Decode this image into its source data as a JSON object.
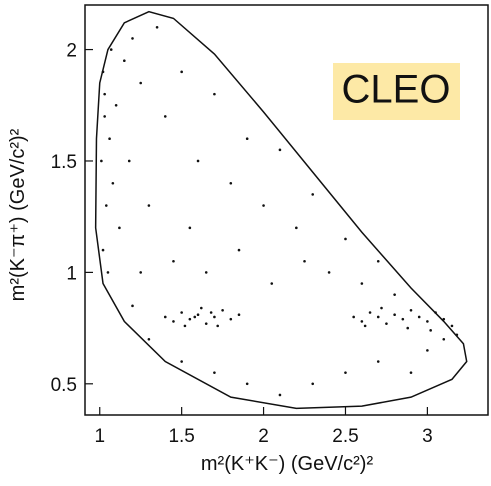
{
  "chart_data": {
    "type": "scatter",
    "annotation": "CLEO",
    "xlabel": "m²(K⁺K⁻) (GeV/c²)²",
    "ylabel": "m²(K⁻π⁺) (GeV/c²)²",
    "xlim": [
      0.91,
      3.37
    ],
    "ylim": [
      0.36,
      2.2
    ],
    "xticks": [
      1,
      1.5,
      2,
      2.5,
      3
    ],
    "yticks": [
      0.5,
      1,
      1.5,
      2
    ],
    "color": "#111111",
    "boundary": {
      "x": [
        0.975,
        0.98,
        1.0,
        1.05,
        1.15,
        1.3,
        1.45,
        1.7,
        2.0,
        2.3,
        2.6,
        2.9,
        3.1,
        3.22,
        3.24,
        3.15,
        2.9,
        2.6,
        2.2,
        1.8,
        1.4,
        1.15,
        1.02,
        0.975
      ],
      "y": [
        1.2,
        1.6,
        1.85,
        2.0,
        2.12,
        2.17,
        2.14,
        1.98,
        1.72,
        1.45,
        1.18,
        0.93,
        0.78,
        0.68,
        0.6,
        0.52,
        0.44,
        0.4,
        0.39,
        0.44,
        0.6,
        0.78,
        0.95,
        1.2
      ]
    },
    "x": [
      1.02,
      1.03,
      1.01,
      1.04,
      1.02,
      1.05,
      1.03,
      1.06,
      1.08,
      1.07,
      1.12,
      1.1,
      1.15,
      1.2,
      1.25,
      1.18,
      1.3,
      1.35,
      1.4,
      1.5,
      1.6,
      1.7,
      1.55,
      1.8,
      1.9,
      2.0,
      2.1,
      2.2,
      2.3,
      2.4,
      2.5,
      2.6,
      2.7,
      2.8,
      1.25,
      1.45,
      1.65,
      1.85,
      2.05,
      2.25,
      1.2,
      1.3,
      1.5,
      1.7,
      1.9,
      2.1,
      2.3,
      2.5,
      2.7,
      2.9,
      3.0,
      3.1,
      1.4,
      1.45,
      1.5,
      1.55,
      1.6,
      1.65,
      1.7,
      1.75,
      1.8,
      1.85,
      1.52,
      1.62,
      1.72,
      1.58,
      1.68,
      2.55,
      2.6,
      2.65,
      2.7,
      2.75,
      2.8,
      2.85,
      2.9,
      2.95,
      3.0,
      3.05,
      3.1,
      3.15,
      3.18,
      2.72,
      2.88,
      3.02,
      2.62
    ],
    "y": [
      1.9,
      1.7,
      1.5,
      1.3,
      1.1,
      1.0,
      1.8,
      1.6,
      1.4,
      2.0,
      1.2,
      1.75,
      1.95,
      2.05,
      1.85,
      1.5,
      1.3,
      2.1,
      1.7,
      1.9,
      1.5,
      1.8,
      1.2,
      1.4,
      1.6,
      1.3,
      1.55,
      1.2,
      1.35,
      1.0,
      1.15,
      0.95,
      1.05,
      0.9,
      1.0,
      1.05,
      1.0,
      1.1,
      0.95,
      1.05,
      0.85,
      0.7,
      0.6,
      0.55,
      0.5,
      0.45,
      0.5,
      0.55,
      0.6,
      0.55,
      0.65,
      0.7,
      0.8,
      0.78,
      0.82,
      0.79,
      0.81,
      0.77,
      0.8,
      0.83,
      0.79,
      0.81,
      0.76,
      0.84,
      0.76,
      0.8,
      0.82,
      0.8,
      0.78,
      0.82,
      0.8,
      0.77,
      0.81,
      0.79,
      0.83,
      0.8,
      0.78,
      0.82,
      0.79,
      0.76,
      0.72,
      0.84,
      0.75,
      0.74,
      0.76
    ]
  }
}
